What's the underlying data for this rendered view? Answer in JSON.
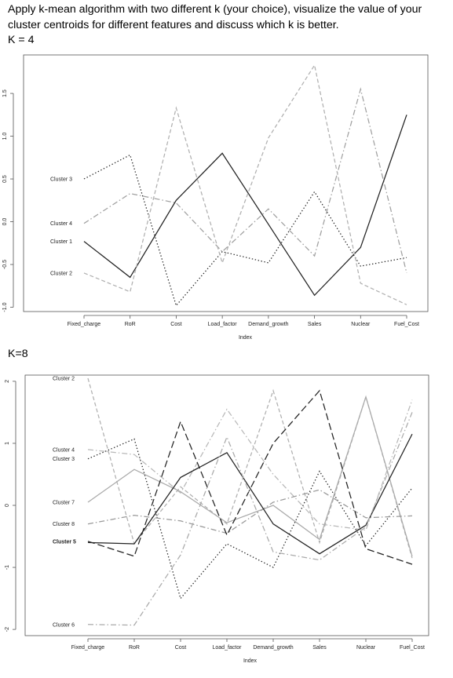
{
  "header": {
    "line1": "Apply k-mean algorithm with two different k (your choice), visualize the value of your",
    "line2": "cluster centroids for different features and discuss which k is better.",
    "k4_label": "K = 4",
    "k8_label": "K=8"
  },
  "chart_data": [
    {
      "type": "line",
      "title": "",
      "xlabel": "Index",
      "ylabel": "",
      "categories": [
        "Fixed_charge",
        "RoR",
        "Cost",
        "Load_factor",
        "Demand_growth",
        "Sales",
        "Nuclear",
        "Fuel_Cost"
      ],
      "ylim": [
        -1.05,
        1.95
      ],
      "y_ticks": [
        -1.0,
        -0.5,
        0.0,
        0.5,
        1.0,
        1.5
      ],
      "y_tick_labels": [
        "-1.0",
        "-0.5",
        "0.0",
        "0.5",
        "1.0",
        "1.5"
      ],
      "grid": false,
      "legend": "labels at left of series",
      "series": [
        {
          "name": "Cluster 3",
          "values": [
            0.5,
            0.78,
            -0.98,
            -0.35,
            -0.48,
            0.35,
            -0.52,
            -0.42
          ],
          "style": "dotted",
          "color": "#222222"
        },
        {
          "name": "Cluster 4",
          "values": [
            -0.02,
            0.33,
            0.22,
            -0.35,
            0.15,
            -0.4,
            1.55,
            -0.6
          ],
          "style": "dashdot",
          "color": "#a0a0a0"
        },
        {
          "name": "Cluster 1",
          "values": [
            -0.23,
            -0.65,
            0.25,
            0.8,
            -0.03,
            -0.86,
            -0.3,
            1.25
          ],
          "style": "solid",
          "color": "#222222"
        },
        {
          "name": "Cluster 2",
          "values": [
            -0.6,
            -0.82,
            1.33,
            -0.48,
            0.98,
            1.83,
            -0.72,
            -0.97
          ],
          "style": "dashed",
          "color": "#b0b0b0"
        }
      ]
    },
    {
      "type": "line",
      "title": "",
      "xlabel": "Index",
      "ylabel": "",
      "categories": [
        "Fixed_charge",
        "RoR",
        "Cost",
        "Load_factor",
        "Demand_growth",
        "Sales",
        "Nuclear",
        "Fuel_Cost"
      ],
      "ylim": [
        -2.1,
        2.1
      ],
      "y_ticks": [
        -2,
        -1,
        0,
        1,
        2
      ],
      "y_tick_labels": [
        "-2",
        "-1",
        "0",
        "1",
        "2"
      ],
      "grid": false,
      "legend": "labels at left of series",
      "series": [
        {
          "name": "Cluster 2",
          "values": [
            2.05,
            -0.62,
            0.3,
            -0.3,
            1.85,
            -0.6,
            1.75,
            -0.85
          ],
          "style": "dashed",
          "color": "#b0b0b0"
        },
        {
          "name": "Cluster 4",
          "values": [
            0.9,
            0.82,
            0.2,
            1.55,
            0.5,
            -0.3,
            -0.4,
            1.7
          ],
          "style": "dashdot",
          "color": "#b8b8b8"
        },
        {
          "name": "Cluster 3",
          "values": [
            0.75,
            1.07,
            -1.5,
            -0.62,
            -1.0,
            0.55,
            -0.65,
            0.28
          ],
          "style": "dotted",
          "color": "#222222"
        },
        {
          "name": "Cluster 7",
          "values": [
            0.05,
            0.58,
            0.22,
            -0.28,
            0.0,
            -0.55,
            1.75,
            -0.82
          ],
          "style": "solid",
          "color": "#aaaaaa"
        },
        {
          "name": "Cluster 8",
          "values": [
            -0.3,
            -0.16,
            -0.25,
            -0.45,
            0.05,
            0.25,
            -0.2,
            -0.17
          ],
          "style": "dashdot",
          "color": "#999999"
        },
        {
          "name": "Cluster 5",
          "values": [
            -0.58,
            -0.82,
            1.35,
            -0.48,
            1.0,
            1.85,
            -0.7,
            -0.95
          ],
          "style": "longdash",
          "color": "#222222"
        },
        {
          "name": "",
          "values": [
            -0.6,
            -0.62,
            0.45,
            0.85,
            -0.3,
            -0.78,
            -0.32,
            1.15
          ],
          "style": "solid",
          "color": "#222222"
        },
        {
          "name": "Cluster 6",
          "values": [
            -1.92,
            -1.93,
            -0.8,
            1.1,
            -0.75,
            -0.88,
            -0.35,
            1.5
          ],
          "style": "dashdot",
          "color": "#aaaaaa"
        }
      ]
    }
  ]
}
